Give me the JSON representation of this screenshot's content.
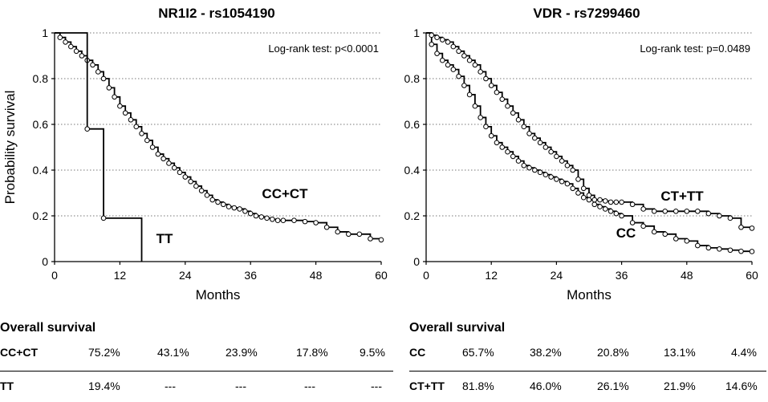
{
  "chart_data": [
    {
      "type": "line",
      "title": "NR1I2 - rs1054190",
      "xlabel": "Months",
      "ylabel": "Probability survival",
      "xlim": [
        0,
        60
      ],
      "ylim": [
        0,
        1
      ],
      "xticks": [
        0,
        12,
        24,
        36,
        48,
        60
      ],
      "yticks": [
        0,
        0.2,
        0.4,
        0.6,
        0.8,
        1
      ],
      "ytick_labels": [
        "0",
        "0.2",
        "0.4",
        "0.6",
        "0.8",
        "1"
      ],
      "grid": "horizontal dotted",
      "annotation": "Log-rank test: p<0.0001",
      "series": [
        {
          "name": "CC+CT",
          "x": [
            0,
            1,
            2,
            3,
            4,
            5,
            6,
            7,
            8,
            9,
            10,
            11,
            12,
            13,
            14,
            15,
            16,
            17,
            18,
            19,
            20,
            21,
            22,
            23,
            24,
            25,
            26,
            27,
            28,
            29,
            30,
            31,
            32,
            33,
            34,
            35,
            36,
            37,
            38,
            39,
            40,
            41,
            42,
            44,
            46,
            48,
            50,
            52,
            54,
            56,
            58,
            60
          ],
          "y": [
            1.0,
            0.98,
            0.96,
            0.94,
            0.92,
            0.9,
            0.88,
            0.86,
            0.83,
            0.8,
            0.76,
            0.72,
            0.68,
            0.65,
            0.62,
            0.59,
            0.56,
            0.53,
            0.5,
            0.47,
            0.45,
            0.43,
            0.41,
            0.39,
            0.37,
            0.35,
            0.33,
            0.31,
            0.29,
            0.27,
            0.26,
            0.25,
            0.24,
            0.235,
            0.23,
            0.22,
            0.21,
            0.2,
            0.195,
            0.19,
            0.185,
            0.18,
            0.18,
            0.18,
            0.175,
            0.17,
            0.15,
            0.13,
            0.12,
            0.12,
            0.1,
            0.095
          ]
        },
        {
          "name": "TT",
          "x": [
            0,
            5,
            6,
            8,
            9,
            15,
            16
          ],
          "y": [
            1.0,
            1.0,
            0.58,
            0.58,
            0.19,
            0.19,
            0.0
          ]
        }
      ],
      "series_labels": [
        "CC+CT",
        "TT"
      ]
    },
    {
      "type": "line",
      "title": "VDR - rs7299460",
      "xlabel": "Months",
      "ylabel": "",
      "xlim": [
        0,
        60
      ],
      "ylim": [
        0,
        1
      ],
      "xticks": [
        0,
        12,
        24,
        36,
        48,
        60
      ],
      "yticks": [
        0,
        0.2,
        0.4,
        0.6,
        0.8,
        1
      ],
      "ytick_labels": [
        "0",
        "0.2",
        "0.4",
        "0.6",
        "0.8",
        "1"
      ],
      "grid": "horizontal dotted",
      "annotation": "Log-rank test: p=0.0489",
      "series": [
        {
          "name": "CC",
          "x": [
            0,
            1,
            2,
            3,
            4,
            5,
            6,
            7,
            8,
            9,
            10,
            11,
            12,
            13,
            14,
            15,
            16,
            17,
            18,
            19,
            20,
            21,
            22,
            23,
            24,
            25,
            26,
            27,
            28,
            29,
            30,
            31,
            32,
            33,
            34,
            35,
            36,
            38,
            40,
            42,
            44,
            46,
            48,
            50,
            52,
            54,
            56,
            58,
            60
          ],
          "y": [
            1.0,
            0.95,
            0.91,
            0.88,
            0.86,
            0.84,
            0.81,
            0.77,
            0.73,
            0.68,
            0.63,
            0.59,
            0.55,
            0.52,
            0.5,
            0.48,
            0.46,
            0.44,
            0.42,
            0.41,
            0.4,
            0.39,
            0.38,
            0.37,
            0.36,
            0.35,
            0.34,
            0.32,
            0.3,
            0.28,
            0.27,
            0.25,
            0.24,
            0.23,
            0.22,
            0.21,
            0.2,
            0.17,
            0.155,
            0.13,
            0.12,
            0.1,
            0.09,
            0.07,
            0.06,
            0.055,
            0.05,
            0.045,
            0.044
          ]
        },
        {
          "name": "CT+TT",
          "x": [
            0,
            1,
            2,
            3,
            4,
            5,
            6,
            7,
            8,
            9,
            10,
            11,
            12,
            13,
            14,
            15,
            16,
            17,
            18,
            19,
            20,
            21,
            22,
            23,
            24,
            25,
            26,
            27,
            28,
            29,
            30,
            31,
            32,
            33,
            34,
            35,
            36,
            38,
            40,
            42,
            44,
            46,
            48,
            50,
            52,
            54,
            56,
            58,
            60
          ],
          "y": [
            1.0,
            0.99,
            0.98,
            0.97,
            0.96,
            0.94,
            0.92,
            0.9,
            0.88,
            0.86,
            0.83,
            0.8,
            0.77,
            0.74,
            0.71,
            0.68,
            0.65,
            0.62,
            0.59,
            0.56,
            0.54,
            0.52,
            0.5,
            0.48,
            0.46,
            0.44,
            0.42,
            0.4,
            0.36,
            0.32,
            0.29,
            0.27,
            0.27,
            0.265,
            0.26,
            0.26,
            0.26,
            0.25,
            0.23,
            0.22,
            0.22,
            0.22,
            0.22,
            0.22,
            0.21,
            0.2,
            0.19,
            0.15,
            0.146
          ]
        }
      ],
      "series_labels": [
        "CT+TT",
        "CC"
      ]
    }
  ],
  "tables": [
    {
      "title": "Overall survival",
      "rows": [
        {
          "label": "CC+CT",
          "values": [
            "75.2%",
            "43.1%",
            "23.9%",
            "17.8%",
            "9.5%"
          ]
        },
        {
          "label": "TT",
          "values": [
            "19.4%",
            "---",
            "---",
            "---",
            "---"
          ]
        }
      ]
    },
    {
      "title": "Overall survival",
      "rows": [
        {
          "label": "CC",
          "values": [
            "65.7%",
            "38.2%",
            "20.8%",
            "13.1%",
            "4.4%"
          ]
        },
        {
          "label": "CT+TT",
          "values": [
            "81.8%",
            "46.0%",
            "26.1%",
            "21.9%",
            "14.6%"
          ]
        }
      ]
    }
  ]
}
